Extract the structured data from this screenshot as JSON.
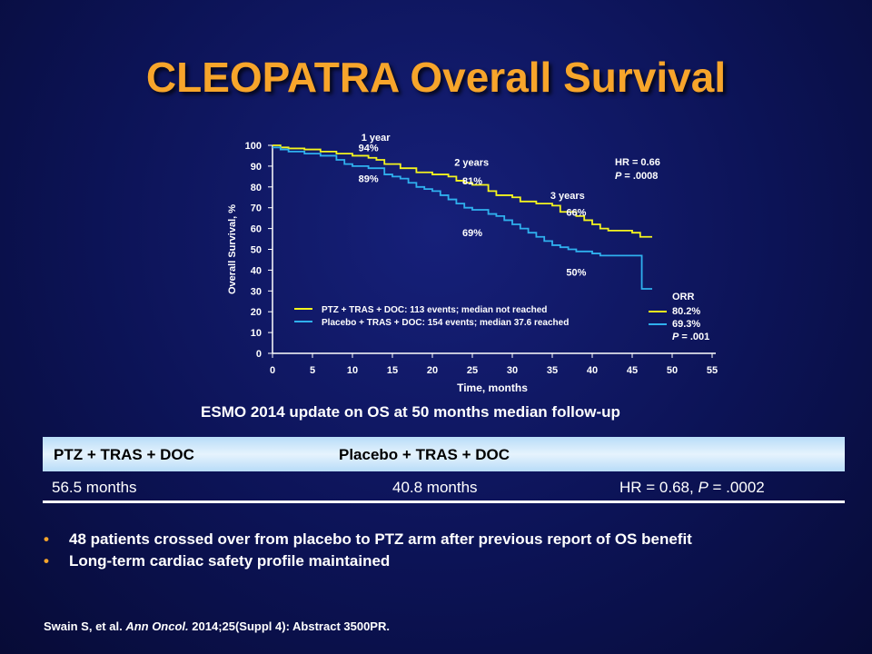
{
  "title": "CLEOPATRA Overall Survival",
  "chart_data": {
    "type": "line",
    "xlabel": "Time, months",
    "ylabel": "Overall Survival, %",
    "xlim": [
      0,
      55
    ],
    "ylim": [
      0,
      100
    ],
    "xticks": [
      0,
      5,
      10,
      15,
      20,
      25,
      30,
      35,
      40,
      45,
      50,
      55
    ],
    "yticks": [
      0,
      10,
      20,
      30,
      40,
      50,
      60,
      70,
      80,
      90,
      100
    ],
    "grid": false,
    "legend_position": "bottom-left",
    "series": [
      {
        "name": "PTZ + TRAS + DOC: 113 events; median not reached",
        "color": "#f5f51e",
        "points": [
          [
            0,
            100
          ],
          [
            1,
            99
          ],
          [
            2,
            98.5
          ],
          [
            4,
            98
          ],
          [
            6,
            97
          ],
          [
            8,
            96
          ],
          [
            10,
            95
          ],
          [
            12,
            94
          ],
          [
            13,
            93
          ],
          [
            14,
            91
          ],
          [
            16,
            89
          ],
          [
            18,
            87
          ],
          [
            20,
            86
          ],
          [
            22,
            85
          ],
          [
            23,
            83
          ],
          [
            24,
            82
          ],
          [
            25,
            81
          ],
          [
            27,
            78
          ],
          [
            28,
            76
          ],
          [
            30,
            75
          ],
          [
            31,
            73
          ],
          [
            33,
            72
          ],
          [
            35,
            71
          ],
          [
            36,
            68
          ],
          [
            38,
            66
          ],
          [
            39,
            64
          ],
          [
            40,
            62
          ],
          [
            41,
            60
          ],
          [
            42,
            59
          ],
          [
            44,
            59
          ],
          [
            45,
            58
          ],
          [
            46,
            56
          ],
          [
            47.5,
            56
          ]
        ]
      },
      {
        "name": "Placebo + TRAS + DOC: 154 events; median 37.6 reached",
        "color": "#2fb0ee",
        "points": [
          [
            0,
            99
          ],
          [
            1,
            98
          ],
          [
            2,
            97
          ],
          [
            4,
            96
          ],
          [
            6,
            95
          ],
          [
            8,
            93
          ],
          [
            9,
            91
          ],
          [
            10,
            90
          ],
          [
            12,
            89
          ],
          [
            14,
            86
          ],
          [
            15,
            85
          ],
          [
            16,
            84
          ],
          [
            17,
            82
          ],
          [
            18,
            80
          ],
          [
            19,
            79
          ],
          [
            20,
            78
          ],
          [
            21,
            76
          ],
          [
            22,
            74
          ],
          [
            23,
            72
          ],
          [
            24,
            70
          ],
          [
            25,
            69
          ],
          [
            27,
            67
          ],
          [
            28,
            66
          ],
          [
            29,
            64
          ],
          [
            30,
            62
          ],
          [
            31,
            60
          ],
          [
            32,
            58
          ],
          [
            33,
            56
          ],
          [
            34,
            54
          ],
          [
            35,
            52
          ],
          [
            36,
            51
          ],
          [
            37,
            50
          ],
          [
            38,
            49
          ],
          [
            40,
            48
          ],
          [
            41,
            47
          ],
          [
            45,
            47
          ],
          [
            46,
            47
          ],
          [
            46.2,
            31
          ],
          [
            47.5,
            31
          ]
        ]
      }
    ],
    "annotations": {
      "time_labels": [
        {
          "text": "1 year",
          "x": 12,
          "y": 104
        },
        {
          "text": "2 years",
          "x": 24,
          "y": 92
        },
        {
          "text": "3 years",
          "x": 36,
          "y": 76
        }
      ],
      "pct_labels": [
        {
          "text": "94%",
          "x": 12,
          "y": 99,
          "series": 0
        },
        {
          "text": "81%",
          "x": 25,
          "y": 83,
          "series": 0
        },
        {
          "text": "66%",
          "x": 38,
          "y": 68,
          "series": 0
        },
        {
          "text": "89%",
          "x": 12,
          "y": 84,
          "series": 1
        },
        {
          "text": "69%",
          "x": 25,
          "y": 58,
          "series": 1
        },
        {
          "text": "50%",
          "x": 38,
          "y": 39,
          "series": 1
        }
      ],
      "hr_text": "HR = 0.66",
      "p_label": "P",
      "p_text": " = .0008",
      "orr": {
        "title": "ORR",
        "values": [
          "80.2%",
          "69.3%"
        ],
        "p_label": "P",
        "p_text": " = .001"
      }
    }
  },
  "subtitle": "ESMO 2014 update on OS at 50 months median follow-up",
  "table": {
    "headers": [
      "PTZ + TRAS + DOC",
      "Placebo + TRAS + DOC"
    ],
    "row": {
      "a": "56.5 months",
      "b": "40.8 months",
      "hr": "HR = 0.68, ",
      "p_label": "P",
      "p_value": " = .0002"
    }
  },
  "bullets": [
    "48 patients crossed over from placebo to PTZ arm after previous report of OS benefit",
    "Long-term cardiac safety profile maintained"
  ],
  "bullet_symbol": "•",
  "reference": {
    "authors": "Swain S, et al. ",
    "journal": "Ann Oncol.",
    "rest": " 2014;25(Suppl 4): Abstract 3500PR."
  },
  "colors": {
    "title": "#f7a52b",
    "ptz": "#f5f51e",
    "placebo": "#2fb0ee"
  }
}
